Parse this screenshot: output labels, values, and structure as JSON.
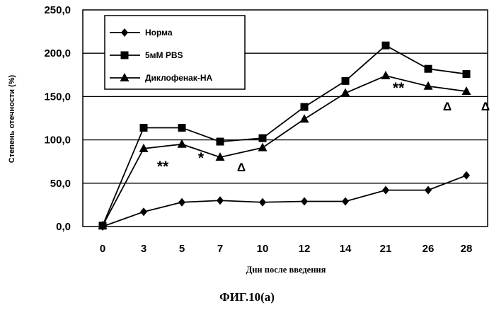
{
  "chart_data": {
    "type": "line",
    "title": "",
    "xlabel": "Дни после введения",
    "ylabel": "Степень отечности (%)",
    "categories": [
      "0",
      "3",
      "5",
      "7",
      "10",
      "12",
      "14",
      "21",
      "26",
      "28"
    ],
    "ylim": [
      0,
      250
    ],
    "yticks": [
      "0,0",
      "50,0",
      "100,0",
      "150,0",
      "200,0",
      "250,0"
    ],
    "ytick_values": [
      0,
      50,
      100,
      150,
      200,
      250
    ],
    "grid": true,
    "legend_position": "top-left",
    "series": [
      {
        "name": "Норма",
        "marker": "diamond",
        "values": [
          0,
          17,
          28,
          30,
          28,
          29,
          29,
          42,
          42,
          59
        ]
      },
      {
        "name": "5мМ PBS",
        "marker": "square",
        "values": [
          1,
          114,
          114,
          98,
          102,
          138,
          168,
          209,
          182,
          176
        ]
      },
      {
        "name": "Диклофенак-НА",
        "marker": "triangle",
        "values": [
          1,
          90,
          95,
          80,
          91,
          124,
          154,
          174,
          162,
          156
        ]
      }
    ],
    "annotations": [
      {
        "text": "**",
        "x": 4
      },
      {
        "text": "*",
        "x": 6
      },
      {
        "text": "Δ",
        "x": 8.5
      },
      {
        "text": "**",
        "x": 22.5
      },
      {
        "text": "Δ",
        "x": 27
      },
      {
        "text": "Δ",
        "x": 29
      }
    ],
    "caption": "ФИГ.10(а)"
  }
}
